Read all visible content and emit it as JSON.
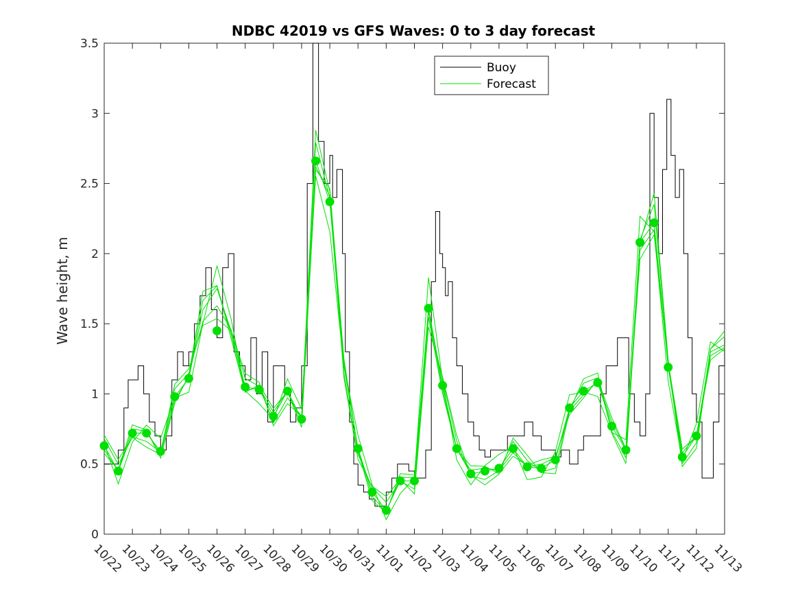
{
  "chart_data": {
    "type": "line",
    "title": "NDBC 42019 vs GFS Waves: 0 to 3 day forecast",
    "xlabel": "",
    "ylabel": "Wave height, m",
    "ylim": [
      0,
      3.5
    ],
    "xlim": [
      0,
      22
    ],
    "yticks": [
      "0",
      "0.5",
      "1",
      "1.5",
      "2",
      "2.5",
      "3",
      "3.5"
    ],
    "xticks": [
      "10/22",
      "10/23",
      "10/24",
      "10/25",
      "10/26",
      "10/27",
      "10/28",
      "10/29",
      "10/30",
      "10/31",
      "11/01",
      "11/02",
      "11/03",
      "11/04",
      "11/05",
      "11/06",
      "11/07",
      "11/08",
      "11/09",
      "11/10",
      "11/11",
      "11/12",
      "11/13"
    ],
    "legend": {
      "position": "top-center",
      "entries": [
        "Buoy",
        "Forecast"
      ]
    },
    "colors": {
      "buoy": "#000000",
      "forecast": "#00e000",
      "markers": "#00e000"
    },
    "series": [
      {
        "name": "Buoy",
        "x": [
          0,
          0.3,
          0.5,
          0.7,
          0.85,
          1.0,
          1.2,
          1.4,
          1.6,
          1.8,
          2.0,
          2.2,
          2.4,
          2.6,
          2.8,
          3.0,
          3.2,
          3.4,
          3.6,
          3.8,
          4.0,
          4.2,
          4.4,
          4.6,
          4.8,
          5.0,
          5.2,
          5.4,
          5.6,
          5.8,
          6.0,
          6.2,
          6.4,
          6.6,
          6.8,
          7.0,
          7.2,
          7.4,
          7.6,
          7.8,
          8.0,
          8.1,
          8.25,
          8.35,
          8.45,
          8.55,
          8.7,
          8.85,
          9.0,
          9.2,
          9.4,
          9.6,
          9.8,
          10.0,
          10.2,
          10.4,
          10.6,
          10.8,
          11.0,
          11.2,
          11.4,
          11.6,
          11.75,
          11.9,
          12.0,
          12.1,
          12.2,
          12.35,
          12.5,
          12.7,
          12.9,
          13.1,
          13.3,
          13.5,
          13.7,
          14.0,
          14.3,
          14.6,
          14.9,
          15.2,
          15.5,
          15.8,
          16.0,
          16.2,
          16.5,
          16.8,
          17.0,
          17.2,
          17.4,
          17.6,
          17.8,
          18.0,
          18.2,
          18.4,
          18.6,
          18.8,
          19.0,
          19.2,
          19.35,
          19.5,
          19.65,
          19.8,
          19.95,
          20.1,
          20.25,
          20.4,
          20.55,
          20.7,
          20.85,
          21.0,
          21.2,
          21.4,
          21.6,
          21.8,
          22.0
        ],
        "values": [
          0.5,
          0.5,
          0.6,
          0.9,
          1.1,
          1.1,
          1.2,
          1.0,
          0.8,
          0.7,
          0.6,
          0.7,
          1.1,
          1.3,
          1.2,
          1.3,
          1.5,
          1.7,
          1.9,
          1.6,
          1.4,
          1.9,
          2.0,
          1.3,
          1.2,
          1.1,
          1.4,
          1.0,
          1.3,
          0.8,
          1.2,
          1.2,
          1.0,
          0.8,
          0.9,
          1.2,
          2.5,
          3.5,
          2.8,
          2.5,
          2.7,
          2.4,
          2.6,
          2.6,
          2.0,
          1.3,
          0.8,
          0.5,
          0.35,
          0.3,
          0.25,
          0.2,
          0.2,
          0.3,
          0.4,
          0.5,
          0.5,
          0.45,
          0.4,
          0.4,
          0.6,
          1.8,
          2.3,
          2.0,
          1.9,
          1.7,
          1.8,
          1.4,
          1.2,
          1.0,
          0.8,
          0.7,
          0.6,
          0.55,
          0.6,
          0.6,
          0.7,
          0.7,
          0.8,
          0.7,
          0.6,
          0.6,
          0.55,
          0.6,
          0.5,
          0.6,
          0.7,
          0.7,
          0.7,
          1.0,
          1.2,
          1.2,
          1.4,
          1.4,
          1.0,
          0.8,
          0.7,
          1.0,
          3.0,
          2.4,
          2.0,
          2.6,
          3.1,
          2.7,
          2.4,
          2.6,
          2.0,
          1.4,
          1.0,
          0.8,
          0.4,
          0.4,
          0.8,
          1.2,
          1.4
        ]
      },
      {
        "name": "Forecast",
        "x": [
          0,
          0.5,
          1.0,
          1.5,
          2.0,
          2.5,
          3.0,
          3.5,
          4.0,
          4.5,
          5.0,
          5.5,
          6.0,
          6.5,
          7.0,
          7.5,
          8.0,
          8.5,
          9.0,
          9.5,
          10.0,
          10.5,
          11.0,
          11.5,
          12.0,
          12.5,
          13.0,
          13.5,
          14.0,
          14.5,
          15.0,
          15.5,
          16.0,
          16.5,
          17.0,
          17.5,
          18.0,
          18.5,
          19.0,
          19.5,
          20.0,
          20.5,
          21.0,
          21.5,
          22.0
        ],
        "values": [
          0.63,
          0.45,
          0.72,
          0.72,
          0.59,
          0.98,
          1.11,
          1.6,
          1.75,
          1.45,
          1.05,
          1.03,
          0.84,
          1.02,
          0.82,
          2.66,
          2.37,
          1.2,
          0.61,
          0.3,
          0.17,
          0.38,
          0.38,
          1.61,
          1.06,
          0.61,
          0.43,
          0.45,
          0.47,
          0.61,
          0.48,
          0.47,
          0.53,
          0.9,
          1.02,
          1.08,
          0.77,
          0.6,
          2.08,
          2.22,
          1.19,
          0.55,
          0.7,
          1.3,
          1.35
        ]
      },
      {
        "name": "Forecast markers",
        "x": [
          0,
          0.5,
          1.0,
          1.5,
          2.0,
          2.5,
          3.0,
          4.0,
          5.0,
          5.5,
          6.0,
          6.5,
          7.0,
          7.5,
          8.0,
          9.0,
          9.5,
          10.0,
          10.5,
          11.0,
          11.5,
          12.0,
          12.5,
          13.0,
          13.5,
          14.0,
          14.5,
          15.0,
          15.5,
          16.0,
          16.5,
          17.0,
          17.5,
          18.0,
          18.5,
          19.0,
          19.5,
          20.0,
          20.5,
          21.0
        ],
        "values": [
          0.63,
          0.45,
          0.72,
          0.72,
          0.59,
          0.98,
          1.11,
          1.45,
          1.05,
          1.03,
          0.84,
          1.02,
          0.82,
          2.66,
          2.37,
          0.61,
          0.3,
          0.17,
          0.38,
          0.38,
          1.61,
          1.06,
          0.61,
          0.43,
          0.45,
          0.47,
          0.61,
          0.48,
          0.47,
          0.53,
          0.9,
          1.02,
          1.08,
          0.77,
          0.6,
          2.08,
          2.22,
          1.19,
          0.55,
          0.7
        ]
      }
    ]
  }
}
